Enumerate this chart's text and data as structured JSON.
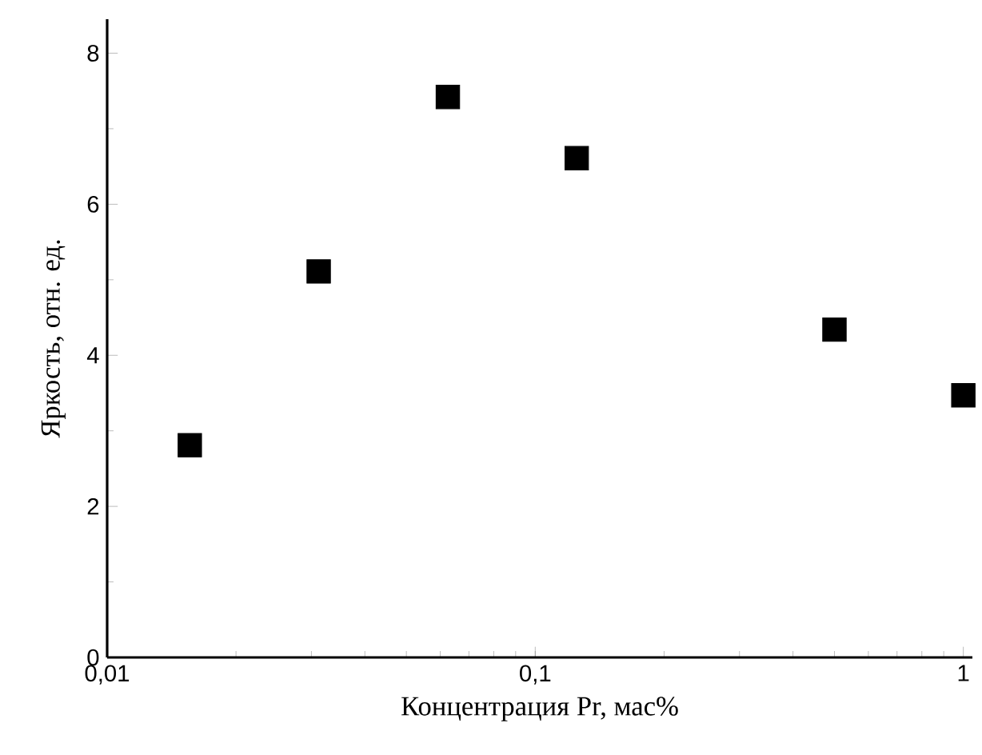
{
  "chart_data": {
    "type": "scatter",
    "xlabel": "Концентрация Pr, мас%",
    "ylabel": "Яркость, отн. ед.",
    "log": "x",
    "marker": "square",
    "grid": false,
    "x": [
      0.0156,
      0.0312,
      0.0625,
      0.125,
      0.5,
      1
    ],
    "series": [
      {
        "color": "#000000",
        "values": [
          2.81,
          5.11,
          7.42,
          6.61,
          4.34,
          3.47
        ]
      }
    ],
    "xlim": [
      0.01,
      1.05
    ],
    "ylim": [
      0,
      8.45
    ],
    "xticks": [
      {
        "value": 0.01,
        "label": "0,01"
      },
      {
        "value": 0.1,
        "label": "0,1"
      },
      1
    ],
    "yticks": [
      0,
      2,
      4,
      6,
      8
    ]
  }
}
